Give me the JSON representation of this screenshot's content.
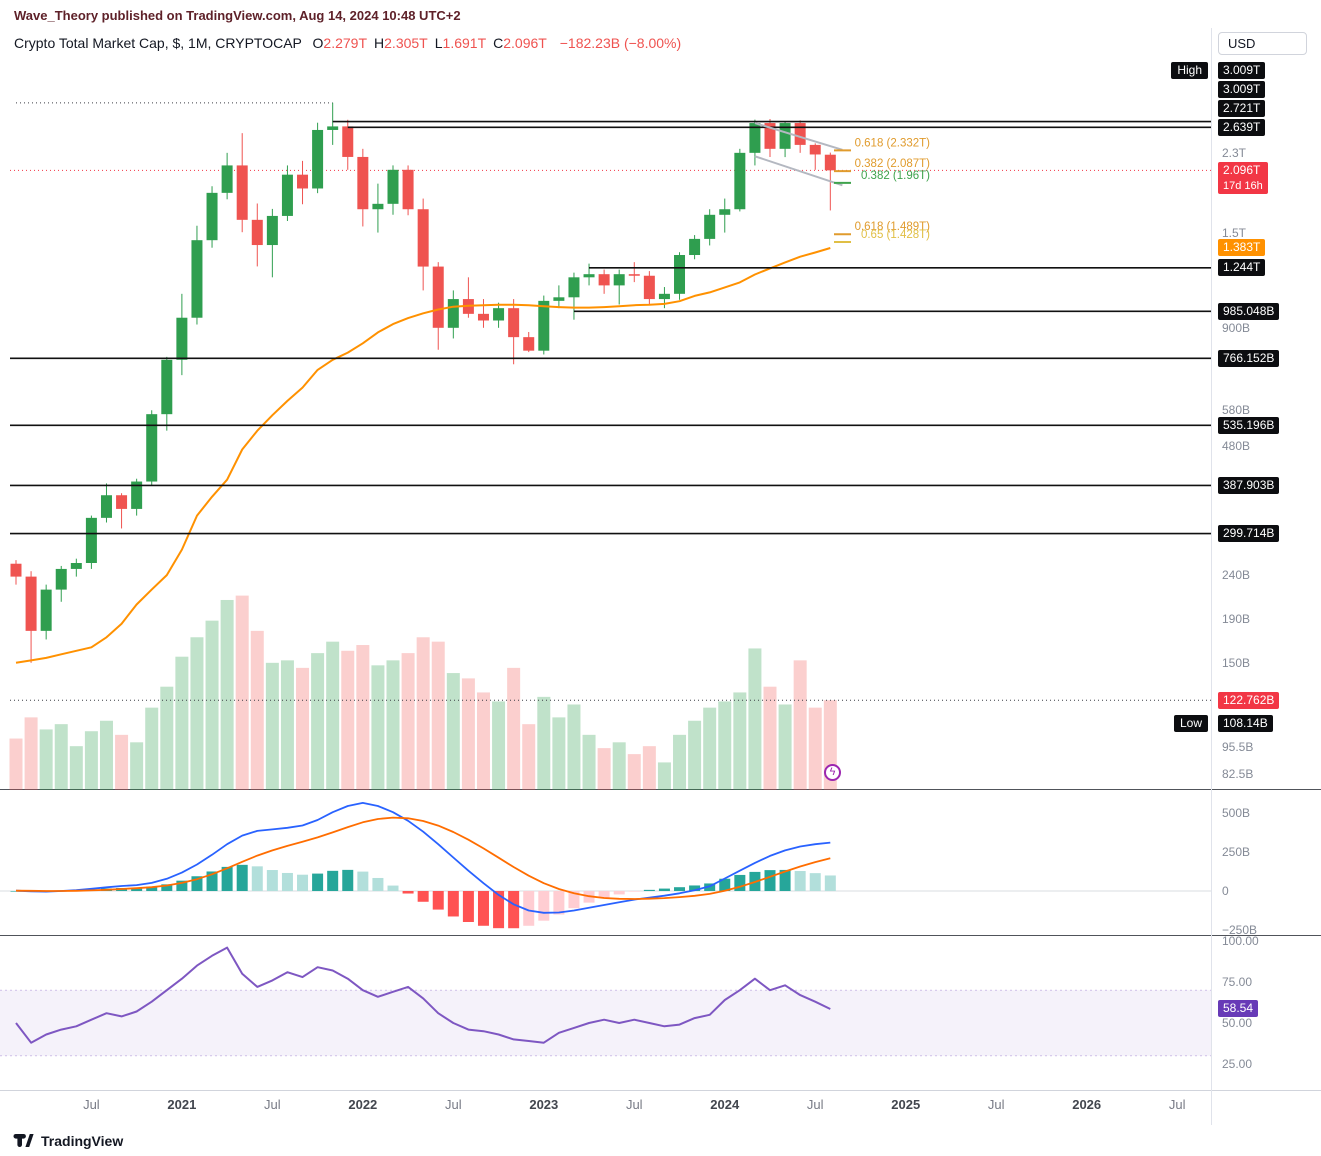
{
  "attribution": "Wave_Theory published on TradingView.com, Aug 14, 2024 10:48 UTC+2",
  "header": {
    "title": "Crypto Total Market Cap, $, 1M, CRYPTOCAP",
    "ohlc": [
      {
        "label": "O",
        "value": "2.279T"
      },
      {
        "label": "H",
        "value": "2.305T"
      },
      {
        "label": "L",
        "value": "1.691T"
      },
      {
        "label": "C",
        "value": "2.096T"
      }
    ],
    "change": "−182.23B (−8.00%)"
  },
  "currency_button": "USD",
  "logo_text": "TradingView",
  "colors": {
    "up": "#2f9e4f",
    "down": "#ef5350",
    "vol_up": "rgba(47,158,79,0.30)",
    "vol_down": "rgba(239,83,80,0.28)",
    "ma": "#ff9100",
    "macd": "#2962ff",
    "signal": "#ff6d00",
    "hist_grow_above": "#26a69a",
    "hist_fall_above": "#b2dfdb",
    "hist_grow_below": "#ffcdd2",
    "hist_fall_below": "#ff5252",
    "rsi": "#7e57c2",
    "rsi_band": "rgba(126,87,194,0.08)",
    "level": "#111111",
    "badge_black": "#0c0d10",
    "badge_red": "#f23645",
    "badge_orange": "#ff9100",
    "badge_purple": "#673ab7",
    "axis_text": "#848a96",
    "trend": "#b4b8c1",
    "price_line": "#f23645"
  },
  "price_axis": {
    "high_label": "High",
    "low_label": "Low",
    "gray_labels": [
      {
        "text": "2.3T",
        "value": 2300
      },
      {
        "text": "1.5T",
        "value": 1500
      },
      {
        "text": "900B",
        "value": 900
      },
      {
        "text": "580B",
        "value": 580
      },
      {
        "text": "480B",
        "value": 480
      },
      {
        "text": "240B",
        "value": 240
      },
      {
        "text": "190B",
        "value": 190
      },
      {
        "text": "150B",
        "value": 150
      },
      {
        "text": "95.5B",
        "value": 95.5
      },
      {
        "text": "82.5B",
        "value": 82.5
      }
    ],
    "black_badges": [
      {
        "text": "3.009T",
        "value": 3009,
        "side": "High"
      },
      {
        "text": "3.009T",
        "value": 3009
      },
      {
        "text": "2.721T",
        "value": 2721
      },
      {
        "text": "2.639T",
        "value": 2639
      },
      {
        "text": "1.244T",
        "value": 1244
      },
      {
        "text": "985.048B",
        "value": 985.048
      },
      {
        "text": "766.152B",
        "value": 766.152
      },
      {
        "text": "535.196B",
        "value": 535.196
      },
      {
        "text": "387.903B",
        "value": 387.903
      },
      {
        "text": "299.714B",
        "value": 299.714
      },
      {
        "text": "108.14B",
        "value": 108.14,
        "side": "Low"
      }
    ],
    "price_badge": {
      "text": "2.096T",
      "countdown": "17d 16h",
      "value": 2096
    },
    "ma_badge": {
      "text": "1.383T",
      "value": 1383
    },
    "volume_badge": {
      "text": "122.762B",
      "value": 122.762
    }
  },
  "macd_axis": [
    {
      "text": "500B",
      "value": 500
    },
    {
      "text": "250B",
      "value": 250
    },
    {
      "text": "0",
      "value": 0
    },
    {
      "text": "−250B",
      "value": -250
    }
  ],
  "rsi_axis": {
    "labels": [
      {
        "text": "100.00",
        "value": 100
      },
      {
        "text": "75.00",
        "value": 75
      },
      {
        "text": "50.00",
        "value": 50
      },
      {
        "text": "25.00",
        "value": 25
      }
    ],
    "badge": {
      "text": "58.54",
      "value": 58.54
    }
  },
  "time_axis": [
    {
      "label": "Jul",
      "m": 5
    },
    {
      "label": "2021",
      "m": 11
    },
    {
      "label": "Jul",
      "m": 17
    },
    {
      "label": "2022",
      "m": 23
    },
    {
      "label": "Jul",
      "m": 29
    },
    {
      "label": "2023",
      "m": 35
    },
    {
      "label": "Jul",
      "m": 41
    },
    {
      "label": "2024",
      "m": 47
    },
    {
      "label": "Jul",
      "m": 53
    },
    {
      "label": "2025",
      "m": 59
    },
    {
      "label": "Jul",
      "m": 65
    },
    {
      "label": "2026",
      "m": 71
    },
    {
      "label": "Jul",
      "m": 77
    }
  ],
  "chart_data": {
    "type": "candlestick",
    "title": "Crypto Total Market Cap",
    "interval": "1M",
    "scale": "log",
    "units": "billions USD",
    "start_month": "2020-02",
    "ohlc_current": {
      "open": 2279,
      "high": 2305,
      "low": 1691,
      "close": 2096
    },
    "candles": [
      [
        255,
        260,
        228,
        238
      ],
      [
        238,
        245,
        150,
        178
      ],
      [
        178,
        228,
        170,
        222
      ],
      [
        222,
        252,
        208,
        248
      ],
      [
        248,
        262,
        238,
        256
      ],
      [
        256,
        330,
        248,
        326
      ],
      [
        326,
        392,
        318,
        368
      ],
      [
        368,
        372,
        308,
        342
      ],
      [
        342,
        402,
        330,
        396
      ],
      [
        396,
        580,
        388,
        568
      ],
      [
        568,
        772,
        520,
        760
      ],
      [
        760,
        1082,
        700,
        952
      ],
      [
        952,
        1558,
        918,
        1442
      ],
      [
        1442,
        1925,
        1385,
        1858
      ],
      [
        1858,
        2302,
        1795,
        2152
      ],
      [
        2152,
        2558,
        1505,
        1608
      ],
      [
        1608,
        1755,
        1253,
        1405
      ],
      [
        1405,
        1705,
        1182,
        1642
      ],
      [
        1642,
        2152,
        1598,
        2048
      ],
      [
        2048,
        2205,
        1748,
        1902
      ],
      [
        1902,
        2705,
        1855,
        2602
      ],
      [
        2602,
        3009,
        2402,
        2652
      ],
      [
        2652,
        2748,
        2102,
        2252
      ],
      [
        2252,
        2352,
        1552,
        1702
      ],
      [
        1702,
        1952,
        1502,
        1752
      ],
      [
        1752,
        2152,
        1652,
        2102
      ],
      [
        2102,
        2152,
        1648,
        1702
      ],
      [
        1702,
        1802,
        1102,
        1252
      ],
      [
        1252,
        1282,
        802,
        902
      ],
      [
        902,
        1102,
        852,
        1052
      ],
      [
        1052,
        1182,
        952,
        972
      ],
      [
        972,
        1052,
        902,
        938
      ],
      [
        938,
        1032,
        902,
        1002
      ],
      [
        1002,
        1052,
        742,
        858
      ],
      [
        858,
        882,
        792,
        798
      ],
      [
        798,
        1072,
        782,
        1042
      ],
      [
        1042,
        1132,
        1002,
        1062
      ],
      [
        1062,
        1212,
        942,
        1182
      ],
      [
        1182,
        1272,
        1132,
        1202
      ],
      [
        1202,
        1232,
        1082,
        1132
      ],
      [
        1132,
        1232,
        1022,
        1202
      ],
      [
        1202,
        1282,
        1152,
        1192
      ],
      [
        1192,
        1222,
        1022,
        1052
      ],
      [
        1052,
        1122,
        1002,
        1082
      ],
      [
        1082,
        1352,
        1048,
        1332
      ],
      [
        1332,
        1482,
        1302,
        1452
      ],
      [
        1452,
        1702,
        1402,
        1652
      ],
      [
        1652,
        1802,
        1502,
        1702
      ],
      [
        1702,
        2352,
        1682,
        2302
      ],
      [
        2302,
        2750,
        2152,
        2700
      ],
      [
        2700,
        2760,
        2252,
        2352
      ],
      [
        2352,
        2720,
        2250,
        2700
      ],
      [
        2700,
        2740,
        2302,
        2402
      ],
      [
        2402,
        2422,
        2102,
        2282
      ],
      [
        2279,
        2305,
        1691,
        2096
      ]
    ],
    "volume": [
      100,
      112,
      105,
      108,
      96,
      104,
      110,
      102,
      98,
      118,
      132,
      155,
      172,
      188,
      210,
      215,
      178,
      150,
      152,
      146,
      158,
      168,
      160,
      165,
      148,
      152,
      158,
      172,
      168,
      142,
      138,
      128,
      122,
      146,
      108,
      125,
      112,
      120,
      102,
      95,
      98,
      92,
      96,
      88,
      102,
      110,
      118,
      122,
      128,
      162,
      132,
      120,
      152,
      118,
      122.762
    ],
    "ma": [
      150,
      152,
      154,
      157,
      160,
      163,
      172,
      185,
      205,
      222,
      240,
      275,
      330,
      365,
      400,
      470,
      520,
      565,
      610,
      655,
      720,
      760,
      790,
      830,
      880,
      920,
      950,
      975,
      995,
      1010,
      1015,
      1018,
      1020,
      1020,
      1018,
      1012,
      1008,
      1005,
      1005,
      1008,
      1012,
      1018,
      1020,
      1025,
      1040,
      1070,
      1090,
      1120,
      1150,
      1200,
      1240,
      1280,
      1320,
      1350,
      1383
    ],
    "macd": {
      "macd": [
        2,
        -2,
        -4,
        0,
        6,
        14,
        24,
        32,
        38,
        52,
        78,
        118,
        170,
        232,
        300,
        355,
        385,
        395,
        405,
        420,
        455,
        505,
        545,
        565,
        545,
        505,
        450,
        380,
        300,
        215,
        130,
        50,
        -25,
        -85,
        -125,
        -140,
        -138,
        -125,
        -108,
        -90,
        -72,
        -55,
        -42,
        -30,
        -15,
        5,
        30,
        80,
        130,
        180,
        225,
        260,
        285,
        300,
        310
      ],
      "signal": [
        2,
        1.2,
        0.2,
        0.1,
        1.3,
        3.8,
        7.9,
        12.7,
        17.8,
        24.6,
        35.3,
        51.8,
        75.5,
        106.8,
        145.4,
        187.3,
        226.9,
        260.5,
        289.4,
        315.5,
        343.4,
        375.7,
        409.6,
        440.7,
        461.5,
        470.2,
        466.2,
        449,
        419.2,
        378.3,
        328.7,
        272.9,
        213.3,
        153.7,
        97.9,
        50.3,
        12.7,
        -14.9,
        -33.5,
        -44.8,
        -50.2,
        -51.2,
        -49.3,
        -45.5,
        -39.4,
        -30.5,
        -18.4,
        1.3,
        27,
        57.6,
        91.1,
        124.9,
        156.9,
        185.5,
        210.4
      ]
    },
    "rsi": [
      50,
      38,
      43,
      46,
      48,
      52,
      56,
      54,
      57,
      63,
      70,
      77,
      85,
      91,
      96,
      80,
      72,
      76,
      81,
      78,
      84,
      82,
      77,
      70,
      66,
      69,
      72,
      65,
      56,
      50,
      46,
      45,
      43,
      40,
      39,
      38,
      44,
      47,
      50,
      52,
      50,
      52,
      50,
      48,
      49,
      53,
      55,
      64,
      70,
      77,
      70,
      73,
      67,
      63,
      58.54
    ],
    "rsi_bands": [
      70,
      30
    ],
    "levels": [
      {
        "label": "2.721T",
        "value": 2721,
        "from_month": 21
      },
      {
        "label": "2.639T",
        "value": 2639,
        "from_month": 22
      },
      {
        "label": "1.244T",
        "value": 1244,
        "from_month": 38
      },
      {
        "label": "985.048B",
        "value": 985.048,
        "from_month": 37
      },
      {
        "label": "766.152B",
        "value": 766.152,
        "from_month": null
      },
      {
        "label": "535.196B",
        "value": 535.196,
        "from_month": null
      },
      {
        "label": "387.903B",
        "value": 387.903,
        "from_month": null
      },
      {
        "label": "299.714B",
        "value": 299.714,
        "from_month": null
      }
    ],
    "dotted_lines": [
      {
        "value": 3009,
        "from_month": 0,
        "to_month": 21,
        "color": "#3c3f46"
      },
      {
        "value": 2096,
        "from_month": null,
        "to_month": null,
        "color": "#f23645"
      },
      {
        "value": 122.762,
        "from_month": null,
        "to_month": null,
        "color": "#3c3f46"
      }
    ],
    "fib_labels": [
      {
        "text": "0.618 (2.332T)",
        "value": 2332,
        "color": "#e09b2d"
      },
      {
        "text": "0.382 (2.087T)",
        "value": 2087,
        "color": "#e09b2d"
      },
      {
        "text": "0.382 (1.96T)",
        "value": 1960,
        "color": "#3fa34d"
      },
      {
        "text": "0.618 (1.489T)",
        "value": 1489,
        "color": "#e09b2d"
      },
      {
        "text": "0.65 (1.428T)",
        "value": 1428,
        "color": "#e0bf45"
      }
    ],
    "trend_lines": [
      {
        "m1": 49,
        "v1": 2700,
        "m2": 54.8,
        "v2": 2340
      },
      {
        "m1": 49,
        "v1": 2260,
        "m2": 54.8,
        "v2": 1935
      }
    ]
  }
}
